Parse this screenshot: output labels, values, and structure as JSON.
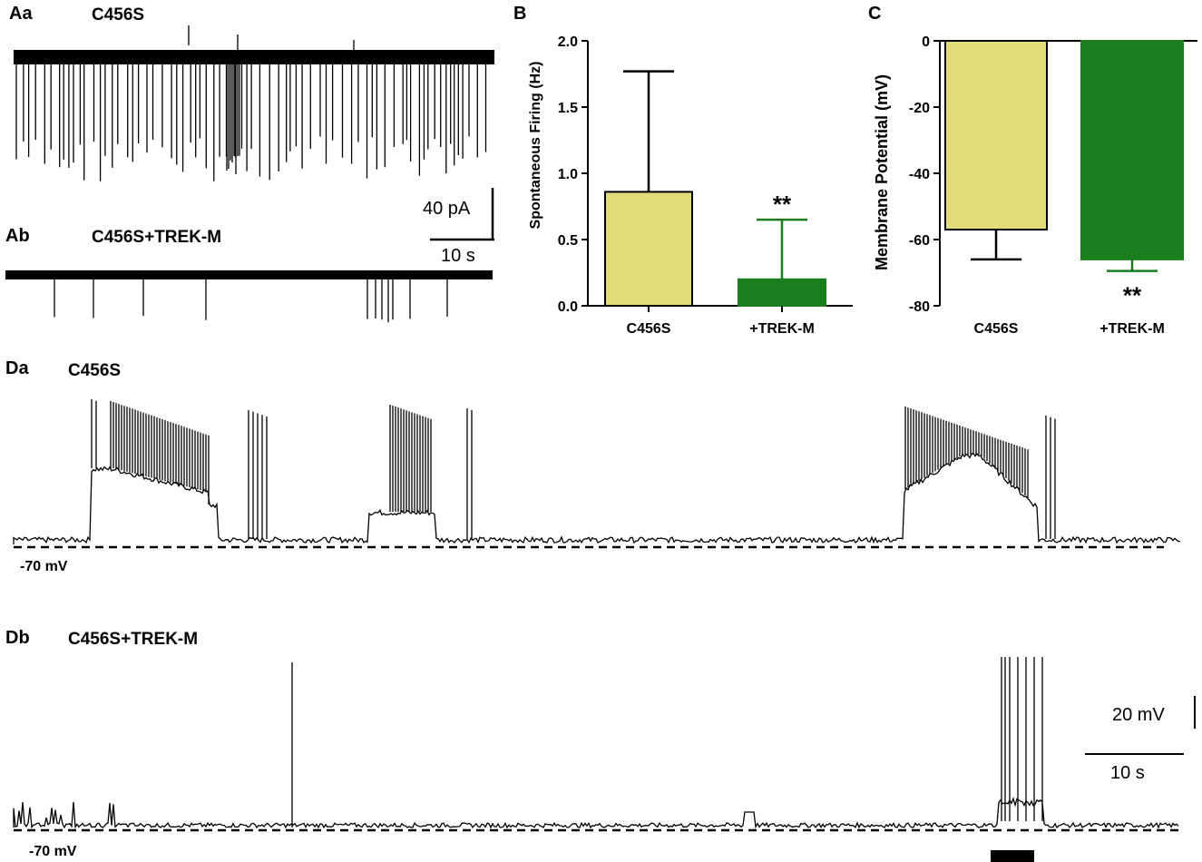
{
  "panels": {
    "aa": {
      "label": "Aa",
      "condition": "C456S"
    },
    "ab": {
      "label": "Ab",
      "condition": "C456S+TREK-M"
    },
    "b": {
      "label": "B"
    },
    "c": {
      "label": "C"
    },
    "da": {
      "label": "Da",
      "condition": "C456S",
      "baseline": "-70 mV"
    },
    "db": {
      "label": "Db",
      "condition": "C456S+TREK-M",
      "baseline": "-70 mV"
    }
  },
  "scalebars": {
    "a": {
      "vertical": "40 pA",
      "horizontal": "10 s"
    },
    "d": {
      "vertical": "20 mV",
      "horizontal": "10 s"
    }
  },
  "colors": {
    "c456s_fill": "#e2dd7a",
    "trek_fill": "#1a7d1e",
    "trace": "#000000"
  },
  "chart_data": [
    {
      "type": "bar",
      "panel": "B",
      "categories": [
        "C456S",
        "+TREK-M"
      ],
      "values": [
        0.86,
        0.2
      ],
      "error": [
        0.91,
        0.45
      ],
      "significance": [
        "",
        "**"
      ],
      "ylabel": "Spontaneous Firing (Hz)",
      "ylim": [
        0,
        2.0
      ],
      "yticks": [
        "0.0",
        "0.5",
        "1.0",
        "1.5",
        "2.0"
      ]
    },
    {
      "type": "bar",
      "panel": "C",
      "categories": [
        "C456S",
        "+TREK-M"
      ],
      "values": [
        -57,
        -66
      ],
      "error": [
        9,
        3.5
      ],
      "significance": [
        "",
        "**"
      ],
      "ylabel": "Membrane Potential (mV)",
      "ylim": [
        -80,
        0
      ],
      "yticks": [
        "0",
        "-20",
        "-40",
        "-60",
        "-80"
      ]
    }
  ]
}
